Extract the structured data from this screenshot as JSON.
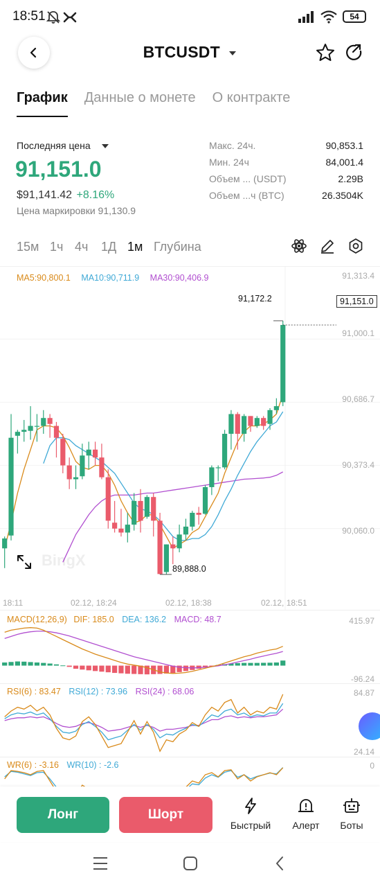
{
  "status": {
    "time": "18:51",
    "battery": "54"
  },
  "header": {
    "title": "BTCUSDT"
  },
  "tabs": [
    {
      "label": "График",
      "active": true
    },
    {
      "label": "Данные о монете",
      "active": false
    },
    {
      "label": "О контракте",
      "active": false
    }
  ],
  "price": {
    "label": "Последняя цена",
    "last": "91,151.0",
    "usd": "$91,141.42",
    "change": "+8.16%",
    "mark_label": "Цена маркировки 91,130.9"
  },
  "stats": [
    {
      "label": "Макс. 24ч.",
      "value": "90,853.1"
    },
    {
      "label": "Мин. 24ч",
      "value": "84,001.4"
    },
    {
      "label": "Объем ... (USDT)",
      "value": "2.29B"
    },
    {
      "label": "Объем ...ч (BTC)",
      "value": "26.3504K"
    }
  ],
  "timeframes": [
    {
      "label": "15м",
      "active": false
    },
    {
      "label": "1ч",
      "active": false
    },
    {
      "label": "4ч",
      "active": false
    },
    {
      "label": "1Д",
      "active": false
    },
    {
      "label": "1м",
      "active": true
    },
    {
      "label": "Глубина",
      "active": false
    }
  ],
  "chart": {
    "ma_labels": {
      "ma5": "MA5:90,800.1",
      "ma10": "MA10:90,711.9",
      "ma30": "MA30:90,406.9"
    },
    "y_ticks": [
      "91,313.4",
      "91,000.1",
      "90,686.7",
      "90,373.4",
      "90,060.0"
    ],
    "x_ticks": [
      "18:11",
      "02.12, 18:24",
      "02.12, 18:38",
      "02.12, 18:51"
    ],
    "high_label": "91,172.2",
    "low_label": "89,888.0",
    "current_price_label": "91,151.0",
    "watermark": "BingX",
    "colors": {
      "up": "#2ea77b",
      "down": "#ea5b6b",
      "ma5": "#d98a1a",
      "ma10": "#3fa9d6",
      "ma30": "#b14fd0"
    }
  },
  "chart_data": {
    "type": "candlestick",
    "x_label": "",
    "y_label": "",
    "ylim": [
      89800,
      91400
    ],
    "candles": [
      {
        "o": 90020,
        "h": 90080,
        "c": 90070,
        "l": 89920
      },
      {
        "o": 90085,
        "h": 90700,
        "c": 90580,
        "l": 90060
      },
      {
        "o": 90590,
        "h": 90620,
        "c": 90610,
        "l": 90500
      },
      {
        "o": 90610,
        "h": 90670,
        "c": 90620,
        "l": 90560
      },
      {
        "o": 90615,
        "h": 90740,
        "c": 90640,
        "l": 90570
      },
      {
        "o": 90640,
        "h": 90700,
        "c": 90640,
        "l": 90560
      },
      {
        "o": 90640,
        "h": 90720,
        "c": 90680,
        "l": 90600
      },
      {
        "o": 90680,
        "h": 90700,
        "c": 90650,
        "l": 90580
      },
      {
        "o": 90640,
        "h": 90660,
        "c": 90580,
        "l": 90480
      },
      {
        "o": 90575,
        "h": 90600,
        "c": 90440,
        "l": 90400
      },
      {
        "o": 90440,
        "h": 90480,
        "c": 90370,
        "l": 90320
      },
      {
        "o": 90370,
        "h": 90440,
        "c": 90380,
        "l": 90320
      },
      {
        "o": 90385,
        "h": 90550,
        "c": 90490,
        "l": 90370
      },
      {
        "o": 90490,
        "h": 90560,
        "c": 90520,
        "l": 90420
      },
      {
        "o": 90520,
        "h": 90560,
        "c": 90480,
        "l": 90440
      },
      {
        "o": 90480,
        "h": 90550,
        "c": 90380,
        "l": 90370
      },
      {
        "o": 90380,
        "h": 90420,
        "c": 90160,
        "l": 90120
      },
      {
        "o": 90150,
        "h": 90260,
        "c": 90120,
        "l": 90100
      },
      {
        "o": 90120,
        "h": 90220,
        "c": 90100,
        "l": 90080
      },
      {
        "o": 90100,
        "h": 90200,
        "c": 90140,
        "l": 90050
      },
      {
        "o": 90140,
        "h": 90300,
        "c": 90260,
        "l": 90110
      },
      {
        "o": 90260,
        "h": 90320,
        "c": 90160,
        "l": 90100
      },
      {
        "o": 90180,
        "h": 90290,
        "c": 90280,
        "l": 90170
      },
      {
        "o": 90280,
        "h": 90300,
        "c": 90160,
        "l": 90080
      },
      {
        "o": 90160,
        "h": 90200,
        "c": 89890,
        "l": 89888
      },
      {
        "o": 89900,
        "h": 90040,
        "c": 90040,
        "l": 89890
      },
      {
        "o": 90040,
        "h": 90080,
        "c": 90020,
        "l": 89940
      },
      {
        "o": 90020,
        "h": 90140,
        "c": 90090,
        "l": 90000
      },
      {
        "o": 90090,
        "h": 90170,
        "c": 90130,
        "l": 90060
      },
      {
        "o": 90130,
        "h": 90210,
        "c": 90200,
        "l": 90110
      },
      {
        "o": 90200,
        "h": 90230,
        "c": 90190,
        "l": 90140
      },
      {
        "o": 90195,
        "h": 90340,
        "c": 90330,
        "l": 90190
      },
      {
        "o": 90330,
        "h": 90440,
        "c": 90430,
        "l": 90290
      },
      {
        "o": 90430,
        "h": 90440,
        "c": 90430,
        "l": 90360
      },
      {
        "o": 90430,
        "h": 90620,
        "c": 90600,
        "l": 90420
      },
      {
        "o": 90600,
        "h": 90720,
        "c": 90700,
        "l": 90520
      },
      {
        "o": 90700,
        "h": 90710,
        "c": 90600,
        "l": 90520
      },
      {
        "o": 90600,
        "h": 90700,
        "c": 90690,
        "l": 90560
      },
      {
        "o": 90690,
        "h": 90690,
        "c": 90640,
        "l": 90610
      },
      {
        "o": 90640,
        "h": 90690,
        "c": 90680,
        "l": 90630
      },
      {
        "o": 90680,
        "h": 90690,
        "c": 90640,
        "l": 90620
      },
      {
        "o": 90650,
        "h": 90730,
        "c": 90720,
        "l": 90620
      },
      {
        "o": 90720,
        "h": 90780,
        "c": 90740,
        "l": 90700
      },
      {
        "o": 90760,
        "h": 91172.2,
        "c": 91151,
        "l": 90740
      }
    ],
    "ma5": [
      90020,
      90150,
      90300,
      90420,
      90520,
      90620,
      90640,
      90640,
      90630,
      90590,
      90530,
      90460,
      90430,
      90420,
      90440,
      90440,
      90400,
      90340,
      90260,
      90200,
      90150,
      90160,
      90190,
      90190,
      90140,
      90080,
      90020,
      90040,
      90060,
      90100,
      90120,
      90180,
      90240,
      90300,
      90400,
      90480,
      90560,
      90610,
      90640,
      90640,
      90650,
      90670,
      90700,
      90800
    ],
    "ma10": [
      null,
      null,
      null,
      null,
      null,
      null,
      90450,
      90540,
      90580,
      90580,
      90570,
      90540,
      90520,
      90500,
      90480,
      90460,
      90430,
      90400,
      90350,
      90300,
      90250,
      90220,
      90210,
      90190,
      90160,
      90120,
      90080,
      90060,
      90060,
      90070,
      90070,
      90090,
      90130,
      90190,
      90260,
      90320,
      90390,
      90450,
      90510,
      90560,
      90600,
      90640,
      90660,
      90711.9
    ],
    "ma30": [
      null,
      null,
      null,
      null,
      null,
      null,
      null,
      null,
      null,
      89950,
      90020,
      90090,
      90140,
      90190,
      90230,
      90260,
      90280,
      90290,
      90290,
      90290,
      90290,
      90295,
      90300,
      90300,
      90305,
      90310,
      90315,
      90320,
      90325,
      90330,
      90335,
      90340,
      90345,
      90350,
      90355,
      90360,
      90365,
      90370,
      90372,
      90374,
      90376,
      90380,
      90390,
      90406.9
    ]
  },
  "indicators": {
    "macd": {
      "label": "MACD(12,26,9)",
      "dif": "DIF: 185.0",
      "dea": "DEA: 136.2",
      "macd": "MACD: 48.7",
      "top": "415.97",
      "bottom": "-96.24",
      "bars": [
        30,
        35,
        40,
        38,
        34,
        30,
        26,
        20,
        12,
        2,
        -12,
        -30,
        -38,
        -45,
        -52,
        -58,
        -64,
        -70,
        -74,
        -78,
        -80,
        -82,
        -84,
        -82,
        -80,
        -76,
        -70,
        -62,
        -52,
        -42,
        -30,
        -18,
        -6,
        6,
        14,
        20,
        24,
        26,
        26,
        26,
        27,
        28,
        30,
        48.7
      ],
      "dif_line": [
        320,
        340,
        350,
        360,
        365,
        360,
        340,
        310,
        280,
        250,
        220,
        190,
        160,
        135,
        110,
        90,
        70,
        50,
        30,
        15,
        5,
        -5,
        -20,
        -40,
        -60,
        -70,
        -75,
        -72,
        -66,
        -55,
        -40,
        -25,
        -10,
        5,
        25,
        45,
        65,
        85,
        100,
        120,
        135,
        150,
        160,
        185
      ],
      "dea_line": [
        260,
        280,
        300,
        315,
        325,
        330,
        330,
        325,
        315,
        300,
        285,
        265,
        245,
        225,
        205,
        185,
        165,
        145,
        125,
        105,
        85,
        70,
        55,
        40,
        25,
        10,
        -5,
        -15,
        -20,
        -22,
        -20,
        -15,
        -10,
        -2,
        8,
        20,
        34,
        48,
        62,
        78,
        92,
        106,
        118,
        136.2
      ]
    },
    "rsi": {
      "rsi6": "RSI(6) : 83.47",
      "rsi12": "RSI(12) : 73.96",
      "rsi24": "RSI(24) : 68.06",
      "top": "84.87",
      "bottom": "24.14",
      "rsi6_line": [
        60,
        66,
        70,
        68,
        72,
        66,
        70,
        62,
        48,
        38,
        36,
        40,
        55,
        60,
        52,
        40,
        28,
        30,
        32,
        44,
        56,
        42,
        55,
        44,
        24,
        36,
        34,
        42,
        46,
        54,
        50,
        62,
        70,
        66,
        75,
        78,
        64,
        70,
        62,
        66,
        64,
        70,
        68,
        83.47
      ],
      "rsi12_line": [
        58,
        62,
        64,
        63,
        65,
        62,
        64,
        58,
        50,
        44,
        43,
        45,
        52,
        55,
        50,
        44,
        36,
        38,
        40,
        46,
        52,
        46,
        52,
        47,
        38,
        42,
        41,
        45,
        48,
        52,
        50,
        56,
        62,
        60,
        66,
        68,
        62,
        64,
        60,
        62,
        61,
        64,
        64,
        73.96
      ],
      "rsi24_line": [
        56,
        58,
        59,
        59,
        60,
        59,
        60,
        57,
        53,
        50,
        49,
        50,
        53,
        54,
        52,
        49,
        45,
        46,
        47,
        49,
        51,
        49,
        51,
        49,
        45,
        47,
        47,
        48,
        49,
        51,
        51,
        54,
        57,
        57,
        60,
        61,
        59,
        60,
        59,
        60,
        60,
        61,
        62,
        68.06
      ]
    },
    "wr": {
      "wr6": "WR(6) : -3.16",
      "wr10": "WR(10) : -2.6",
      "top": "0",
      "wr6_line": [
        -30,
        -10,
        -12,
        -15,
        -20,
        -12,
        -10,
        -35,
        -60,
        -70,
        -80,
        -70,
        -45,
        -55,
        -75,
        -85,
        -95,
        -90,
        -85,
        -65,
        -50,
        -70,
        -50,
        -65,
        -95,
        -75,
        -80,
        -60,
        -50,
        -35,
        -40,
        -20,
        -15,
        -25,
        -10,
        -8,
        -30,
        -20,
        -35,
        -25,
        -20,
        -15,
        -20,
        -3.16
      ],
      "wr10_line": [
        -25,
        -12,
        -14,
        -18,
        -22,
        -15,
        -14,
        -30,
        -50,
        -62,
        -72,
        -68,
        -50,
        -52,
        -68,
        -80,
        -90,
        -88,
        -84,
        -70,
        -58,
        -68,
        -56,
        -66,
        -90,
        -78,
        -80,
        -66,
        -56,
        -42,
        -44,
        -28,
        -20,
        -26,
        -14,
        -10,
        -26,
        -20,
        -30,
        -24,
        -20,
        -16,
        -18,
        -2.6
      ]
    }
  },
  "bottom_bar": {
    "long": "Лонг",
    "short": "Шорт",
    "quick": "Быстрый",
    "alert": "Алерт",
    "bots": "Боты"
  }
}
